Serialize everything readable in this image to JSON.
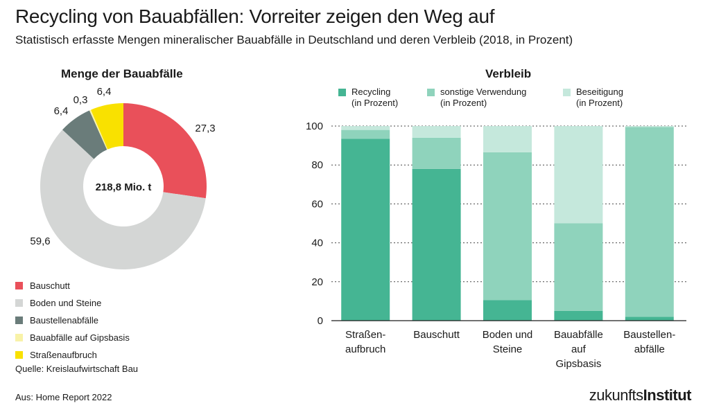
{
  "title": "Recycling von Bauabfällen: Vorreiter zeigen den Weg auf",
  "subtitle": "Statistisch erfasste Mengen mineralischer Bauabfälle in Deutschland und deren Verbleib (2018, in Prozent)",
  "source": "Quelle: Kreislaufwirtschaft Bau",
  "aus": "Aus: Home Report 2022",
  "logo": {
    "light": "zukunfts",
    "bold": "Institut"
  },
  "chart_data": [
    {
      "type": "pie",
      "subtype": "donut",
      "title": "Menge der Bauabfälle",
      "center_label": "218,8 Mio. t",
      "slices": [
        {
          "label": "Bauschutt",
          "value": 27.3,
          "value_label": "27,3",
          "color": "#e9505a"
        },
        {
          "label": "Boden und Steine",
          "value": 59.6,
          "value_label": "59,6",
          "color": "#d4d6d5"
        },
        {
          "label": "Baustellenabfälle",
          "value": 6.4,
          "value_label": "6,4",
          "color": "#6a7c7a"
        },
        {
          "label": "Bauabfälle auf Gipsbasis",
          "value": 0.3,
          "value_label": "0,3",
          "color": "#f8f2a8"
        },
        {
          "label": "Straßenaufbruch",
          "value": 6.4,
          "value_label": "6,4",
          "color": "#f9e100"
        }
      ]
    },
    {
      "type": "bar",
      "stacked": true,
      "title": "Verbleib",
      "categories": [
        [
          "Straßen-",
          "aufbruch"
        ],
        [
          "Bauschutt"
        ],
        [
          "Boden und",
          "Steine"
        ],
        [
          "Bauabfälle",
          "auf",
          "Gipsbasis"
        ],
        [
          "Baustellen-",
          "abfälle"
        ]
      ],
      "series": [
        {
          "name": "Recycling",
          "name2": "(in Prozent)",
          "color": "#45b593",
          "values": [
            93.5,
            78,
            10.5,
            5,
            2
          ]
        },
        {
          "name": "sonstige Verwendung",
          "name2": "(in Prozent)",
          "color": "#8fd3bc",
          "values": [
            4.5,
            16,
            76,
            45,
            97.5
          ]
        },
        {
          "name": "Beseitigung",
          "name2": "(in Prozent)",
          "color": "#c5e8dc",
          "values": [
            2,
            6,
            13.5,
            50,
            0.5
          ]
        }
      ],
      "ylim": [
        0,
        100
      ],
      "yticks": [
        0,
        20,
        40,
        60,
        80,
        100
      ],
      "ytick_labels": [
        "0",
        "20",
        "40",
        "60",
        "80",
        "100"
      ],
      "grid": "dashed"
    }
  ]
}
